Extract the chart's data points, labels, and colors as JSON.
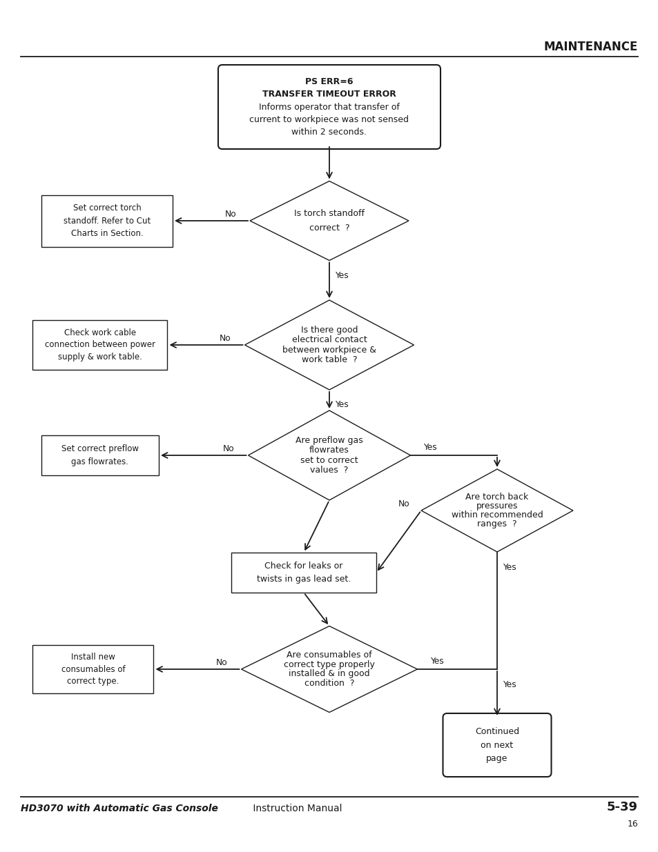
{
  "title": "MAINTENANCE",
  "footer_left_bold": "HD3070 with Automatic Gas Console",
  "footer_left_normal": " Instruction Manual",
  "footer_right": "5-39",
  "footer_page": "16",
  "bg_color": "#ffffff",
  "box_color": "#1a1a1a",
  "text_color": "#1a1a1a"
}
